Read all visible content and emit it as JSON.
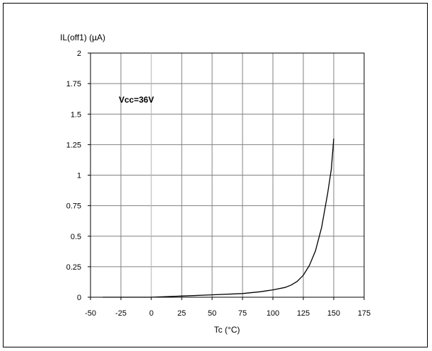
{
  "chart_data": {
    "type": "line",
    "ylabel": "IL(off1) (µA)",
    "xlabel": "Tc (°C)",
    "annotation": "Vcc=36V",
    "xlim": [
      -50,
      175
    ],
    "ylim": [
      0,
      2
    ],
    "xticks": [
      "-50",
      "-25",
      "0",
      "25",
      "50",
      "75",
      "100",
      "125",
      "150",
      "175"
    ],
    "yticks": [
      "0",
      "0.25",
      "0.5",
      "0.75",
      "1",
      "1.25",
      "1.5",
      "1.75",
      "2"
    ],
    "grid": true,
    "series": [
      {
        "x": [
          -40,
          0,
          25,
          50,
          75,
          90,
          100,
          110,
          115,
          120,
          125,
          130,
          135,
          140,
          145,
          148,
          150
        ],
        "y": [
          0.0,
          0.0,
          0.01,
          0.02,
          0.03,
          0.045,
          0.06,
          0.08,
          0.1,
          0.13,
          0.18,
          0.26,
          0.38,
          0.57,
          0.85,
          1.05,
          1.3
        ]
      }
    ],
    "colors": {
      "line": "#000000",
      "grid": "#808080",
      "axis": "#000000"
    }
  }
}
